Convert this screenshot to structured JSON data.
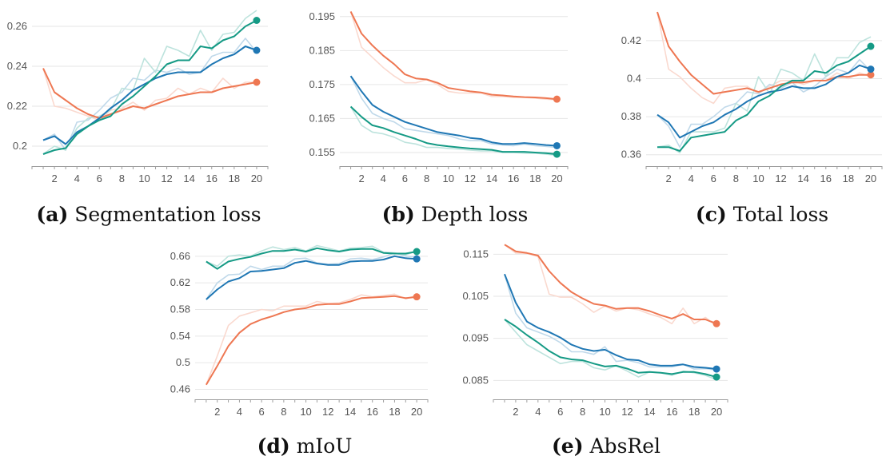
{
  "colors": {
    "orange": "#ee7752",
    "blue": "#1f77b4",
    "teal": "#159a85",
    "grid": "#e6e6e6",
    "axis": "#9e9e9e"
  },
  "chart_data": [
    {
      "type": "line",
      "caption_tag": "(a)",
      "caption_text": "Segmentation loss",
      "x": [
        1,
        2,
        3,
        4,
        5,
        6,
        7,
        8,
        9,
        10,
        11,
        12,
        13,
        14,
        15,
        16,
        17,
        18,
        19,
        20
      ],
      "xticks": [
        2,
        4,
        6,
        8,
        10,
        12,
        14,
        16,
        18,
        20
      ],
      "xtick_labels": [
        "2",
        "4",
        "6",
        "8",
        "10",
        "12",
        "14",
        "16",
        "18",
        "20"
      ],
      "xlim": [
        0,
        21
      ],
      "ylim": [
        0.19,
        0.27
      ],
      "yticks": [
        0.2,
        0.22,
        0.24,
        0.26
      ],
      "ytick_labels": [
        "0.2",
        "0.22",
        "0.24",
        "0.26"
      ],
      "grid": true,
      "series": [
        {
          "color": "orange",
          "values": [
            0.239,
            0.227,
            0.223,
            0.219,
            0.216,
            0.214,
            0.216,
            0.218,
            0.22,
            0.219,
            0.221,
            0.223,
            0.225,
            0.226,
            0.227,
            0.227,
            0.229,
            0.23,
            0.231,
            0.232
          ],
          "raw": [
            0.239,
            0.22,
            0.219,
            0.217,
            0.215,
            0.213,
            0.218,
            0.219,
            0.222,
            0.218,
            0.223,
            0.224,
            0.229,
            0.226,
            0.229,
            0.227,
            0.234,
            0.229,
            0.232,
            0.232
          ]
        },
        {
          "color": "blue",
          "values": [
            0.203,
            0.205,
            0.201,
            0.207,
            0.21,
            0.214,
            0.219,
            0.223,
            0.228,
            0.231,
            0.234,
            0.236,
            0.237,
            0.237,
            0.237,
            0.241,
            0.244,
            0.246,
            0.25,
            0.248
          ],
          "raw": [
            0.203,
            0.206,
            0.198,
            0.212,
            0.213,
            0.218,
            0.224,
            0.227,
            0.234,
            0.233,
            0.238,
            0.237,
            0.239,
            0.236,
            0.237,
            0.245,
            0.247,
            0.247,
            0.254,
            0.247
          ]
        },
        {
          "color": "teal",
          "values": [
            0.196,
            0.198,
            0.199,
            0.206,
            0.21,
            0.213,
            0.215,
            0.221,
            0.225,
            0.23,
            0.235,
            0.241,
            0.243,
            0.243,
            0.25,
            0.249,
            0.253,
            0.255,
            0.26,
            0.263
          ],
          "raw": [
            0.196,
            0.2,
            0.198,
            0.209,
            0.214,
            0.215,
            0.218,
            0.229,
            0.228,
            0.244,
            0.237,
            0.25,
            0.248,
            0.245,
            0.258,
            0.248,
            0.256,
            0.257,
            0.264,
            0.268
          ]
        }
      ]
    },
    {
      "type": "line",
      "caption_tag": "(b)",
      "caption_text": "Depth loss",
      "x": [
        1,
        2,
        3,
        4,
        5,
        6,
        7,
        8,
        9,
        10,
        11,
        12,
        13,
        14,
        15,
        16,
        17,
        18,
        19,
        20
      ],
      "xticks": [
        2,
        4,
        6,
        8,
        10,
        12,
        14,
        16,
        18,
        20
      ],
      "xtick_labels": [
        "2",
        "4",
        "6",
        "8",
        "10",
        "12",
        "14",
        "16",
        "18",
        "20"
      ],
      "xlim": [
        0,
        21
      ],
      "ylim": [
        0.151,
        0.198
      ],
      "yticks": [
        0.155,
        0.165,
        0.175,
        0.185,
        0.195
      ],
      "ytick_labels": [
        "0.155",
        "0.165",
        "0.175",
        "0.185",
        "0.195"
      ],
      "grid": true,
      "series": [
        {
          "color": "orange",
          "values": [
            0.1965,
            0.19,
            0.1865,
            0.1835,
            0.181,
            0.178,
            0.1768,
            0.1765,
            0.1755,
            0.174,
            0.1735,
            0.173,
            0.1727,
            0.172,
            0.1718,
            0.1715,
            0.1713,
            0.1712,
            0.171,
            0.1707
          ],
          "raw": [
            0.1965,
            0.186,
            0.183,
            0.18,
            0.1775,
            0.1755,
            0.1755,
            0.1765,
            0.175,
            0.173,
            0.1725,
            0.1725,
            0.1725,
            0.1715,
            0.1715,
            0.1712,
            0.1712,
            0.171,
            0.1707,
            0.1705
          ]
        },
        {
          "color": "blue",
          "values": [
            0.1775,
            0.173,
            0.169,
            0.167,
            0.1655,
            0.164,
            0.163,
            0.162,
            0.161,
            0.1605,
            0.16,
            0.1593,
            0.159,
            0.158,
            0.1575,
            0.1575,
            0.1578,
            0.1575,
            0.1572,
            0.157
          ],
          "raw": [
            0.1775,
            0.171,
            0.1665,
            0.165,
            0.164,
            0.162,
            0.1615,
            0.161,
            0.1605,
            0.16,
            0.159,
            0.1585,
            0.1585,
            0.1575,
            0.1572,
            0.157,
            0.1575,
            0.157,
            0.1568,
            0.1565
          ]
        },
        {
          "color": "teal",
          "values": [
            0.1685,
            0.1655,
            0.163,
            0.1622,
            0.161,
            0.16,
            0.159,
            0.1578,
            0.1572,
            0.1568,
            0.1565,
            0.1562,
            0.156,
            0.1558,
            0.1552,
            0.1552,
            0.1552,
            0.155,
            0.1548,
            0.1545
          ],
          "raw": [
            0.1685,
            0.163,
            0.161,
            0.1605,
            0.1595,
            0.158,
            0.1575,
            0.1565,
            0.1565,
            0.1562,
            0.156,
            0.1557,
            0.1555,
            0.1555,
            0.155,
            0.155,
            0.1548,
            0.1548,
            0.1545,
            0.1542
          ]
        }
      ]
    },
    {
      "type": "line",
      "caption_tag": "(c)",
      "caption_text": "Total loss",
      "x": [
        1,
        2,
        3,
        4,
        5,
        6,
        7,
        8,
        9,
        10,
        11,
        12,
        13,
        14,
        15,
        16,
        17,
        18,
        19,
        20
      ],
      "xticks": [
        2,
        4,
        6,
        8,
        10,
        12,
        14,
        16,
        18,
        20
      ],
      "xtick_labels": [
        "2",
        "4",
        "6",
        "8",
        "10",
        "12",
        "14",
        "16",
        "18",
        "20"
      ],
      "xlim": [
        0,
        21
      ],
      "ylim": [
        0.354,
        0.438
      ],
      "yticks": [
        0.36,
        0.38,
        0.4,
        0.42
      ],
      "ytick_labels": [
        "0.36",
        "0.38",
        "0.4",
        "0.42"
      ],
      "grid": true,
      "series": [
        {
          "color": "orange",
          "values": [
            0.435,
            0.417,
            0.409,
            0.402,
            0.397,
            0.392,
            0.393,
            0.394,
            0.395,
            0.393,
            0.395,
            0.397,
            0.398,
            0.398,
            0.399,
            0.399,
            0.401,
            0.401,
            0.402,
            0.402
          ],
          "raw": [
            0.435,
            0.405,
            0.401,
            0.395,
            0.39,
            0.387,
            0.395,
            0.396,
            0.396,
            0.392,
            0.396,
            0.399,
            0.399,
            0.397,
            0.399,
            0.399,
            0.403,
            0.4,
            0.403,
            0.401
          ]
        },
        {
          "color": "blue",
          "values": [
            0.381,
            0.377,
            0.369,
            0.372,
            0.375,
            0.377,
            0.381,
            0.384,
            0.388,
            0.391,
            0.393,
            0.394,
            0.396,
            0.395,
            0.395,
            0.397,
            0.401,
            0.403,
            0.407,
            0.405
          ],
          "raw": [
            0.381,
            0.375,
            0.364,
            0.376,
            0.376,
            0.38,
            0.385,
            0.387,
            0.393,
            0.392,
            0.397,
            0.395,
            0.398,
            0.393,
            0.396,
            0.401,
            0.405,
            0.403,
            0.41,
            0.404
          ]
        },
        {
          "color": "teal",
          "values": [
            0.364,
            0.364,
            0.362,
            0.369,
            0.37,
            0.371,
            0.372,
            0.378,
            0.381,
            0.388,
            0.391,
            0.396,
            0.399,
            0.399,
            0.404,
            0.403,
            0.407,
            0.409,
            0.413,
            0.417
          ],
          "raw": [
            0.364,
            0.365,
            0.361,
            0.372,
            0.372,
            0.372,
            0.374,
            0.387,
            0.383,
            0.401,
            0.392,
            0.405,
            0.403,
            0.399,
            0.413,
            0.401,
            0.411,
            0.411,
            0.419,
            0.422
          ]
        }
      ]
    },
    {
      "type": "line",
      "caption_tag": "(d)",
      "caption_text": "mIoU",
      "x": [
        1,
        2,
        3,
        4,
        5,
        6,
        7,
        8,
        9,
        10,
        11,
        12,
        13,
        14,
        15,
        16,
        17,
        18,
        19,
        20
      ],
      "xticks": [
        2,
        4,
        6,
        8,
        10,
        12,
        14,
        16,
        18,
        20
      ],
      "xtick_labels": [
        "2",
        "4",
        "6",
        "8",
        "10",
        "12",
        "14",
        "16",
        "18",
        "20"
      ],
      "xlim": [
        0,
        21
      ],
      "ylim": [
        0.445,
        0.685
      ],
      "yticks": [
        0.46,
        0.5,
        0.54,
        0.58,
        0.62,
        0.66
      ],
      "ytick_labels": [
        "0.46",
        "0.5",
        "0.54",
        "0.58",
        "0.62",
        "0.66"
      ],
      "grid": true,
      "series": [
        {
          "color": "orange",
          "values": [
            0.467,
            0.495,
            0.525,
            0.545,
            0.558,
            0.565,
            0.57,
            0.576,
            0.58,
            0.582,
            0.587,
            0.588,
            0.588,
            0.592,
            0.597,
            0.598,
            0.599,
            0.6,
            0.597,
            0.599
          ],
          "raw": [
            0.467,
            0.51,
            0.556,
            0.57,
            0.575,
            0.58,
            0.578,
            0.585,
            0.585,
            0.585,
            0.592,
            0.589,
            0.59,
            0.595,
            0.602,
            0.599,
            0.601,
            0.603,
            0.596,
            0.601
          ]
        },
        {
          "color": "blue",
          "values": [
            0.595,
            0.61,
            0.622,
            0.627,
            0.637,
            0.638,
            0.64,
            0.642,
            0.65,
            0.653,
            0.649,
            0.647,
            0.647,
            0.652,
            0.653,
            0.653,
            0.655,
            0.66,
            0.657,
            0.656
          ],
          "raw": [
            0.595,
            0.62,
            0.632,
            0.633,
            0.645,
            0.64,
            0.645,
            0.645,
            0.656,
            0.657,
            0.65,
            0.648,
            0.649,
            0.656,
            0.657,
            0.655,
            0.659,
            0.665,
            0.66,
            0.659
          ]
        },
        {
          "color": "teal",
          "values": [
            0.652,
            0.641,
            0.652,
            0.656,
            0.659,
            0.664,
            0.668,
            0.668,
            0.67,
            0.667,
            0.672,
            0.669,
            0.667,
            0.67,
            0.671,
            0.671,
            0.665,
            0.664,
            0.664,
            0.667
          ],
          "raw": [
            0.652,
            0.645,
            0.66,
            0.662,
            0.66,
            0.668,
            0.674,
            0.67,
            0.673,
            0.668,
            0.676,
            0.672,
            0.668,
            0.672,
            0.673,
            0.675,
            0.666,
            0.665,
            0.662,
            0.668
          ]
        }
      ]
    },
    {
      "type": "line",
      "caption_tag": "(e)",
      "caption_text": "AbsRel",
      "x": [
        1,
        2,
        3,
        4,
        5,
        6,
        7,
        8,
        9,
        10,
        11,
        12,
        13,
        14,
        15,
        16,
        17,
        18,
        19,
        20
      ],
      "xticks": [
        2,
        4,
        6,
        8,
        10,
        12,
        14,
        16,
        18,
        20
      ],
      "xtick_labels": [
        "2",
        "4",
        "6",
        "8",
        "10",
        "12",
        "14",
        "16",
        "18",
        "20"
      ],
      "xlim": [
        0,
        21
      ],
      "ylim": [
        0.0805,
        0.1185
      ],
      "yticks": [
        0.085,
        0.095,
        0.105,
        0.115
      ],
      "ytick_labels": [
        "0.085",
        "0.095",
        "0.105",
        "0.115"
      ],
      "grid": true,
      "series": [
        {
          "color": "orange",
          "values": [
            0.1173,
            0.1157,
            0.1153,
            0.1147,
            0.111,
            0.1082,
            0.106,
            0.1045,
            0.1032,
            0.1028,
            0.102,
            0.1022,
            0.1022,
            0.1015,
            0.1005,
            0.0997,
            0.1008,
            0.0995,
            0.0995,
            0.0985
          ],
          "raw": [
            0.1173,
            0.1153,
            0.1152,
            0.1145,
            0.1055,
            0.1048,
            0.1048,
            0.1032,
            0.1012,
            0.1027,
            0.1015,
            0.1022,
            0.1018,
            0.1008,
            0.1,
            0.0985,
            0.1022,
            0.0985,
            0.1,
            0.098
          ]
        },
        {
          "color": "blue",
          "values": [
            0.1103,
            0.1035,
            0.099,
            0.0975,
            0.0965,
            0.0952,
            0.0935,
            0.0925,
            0.092,
            0.0923,
            0.091,
            0.09,
            0.0898,
            0.0888,
            0.0885,
            0.0885,
            0.0888,
            0.0882,
            0.088,
            0.0877
          ],
          "raw": [
            0.1103,
            0.101,
            0.0975,
            0.0965,
            0.0955,
            0.094,
            0.0918,
            0.0918,
            0.0912,
            0.093,
            0.0895,
            0.0898,
            0.0892,
            0.0882,
            0.0882,
            0.0882,
            0.0888,
            0.0877,
            0.0878,
            0.0875
          ]
        },
        {
          "color": "teal",
          "values": [
            0.0995,
            0.0978,
            0.0958,
            0.094,
            0.092,
            0.0905,
            0.09,
            0.0898,
            0.089,
            0.0883,
            0.0885,
            0.0878,
            0.0868,
            0.087,
            0.0868,
            0.0865,
            0.087,
            0.087,
            0.0865,
            0.0858
          ],
          "raw": [
            0.0995,
            0.0965,
            0.0935,
            0.092,
            0.0905,
            0.089,
            0.0895,
            0.0895,
            0.088,
            0.0875,
            0.0885,
            0.0872,
            0.0858,
            0.087,
            0.0868,
            0.0862,
            0.0872,
            0.0868,
            0.0862,
            0.0852
          ]
        }
      ]
    }
  ]
}
